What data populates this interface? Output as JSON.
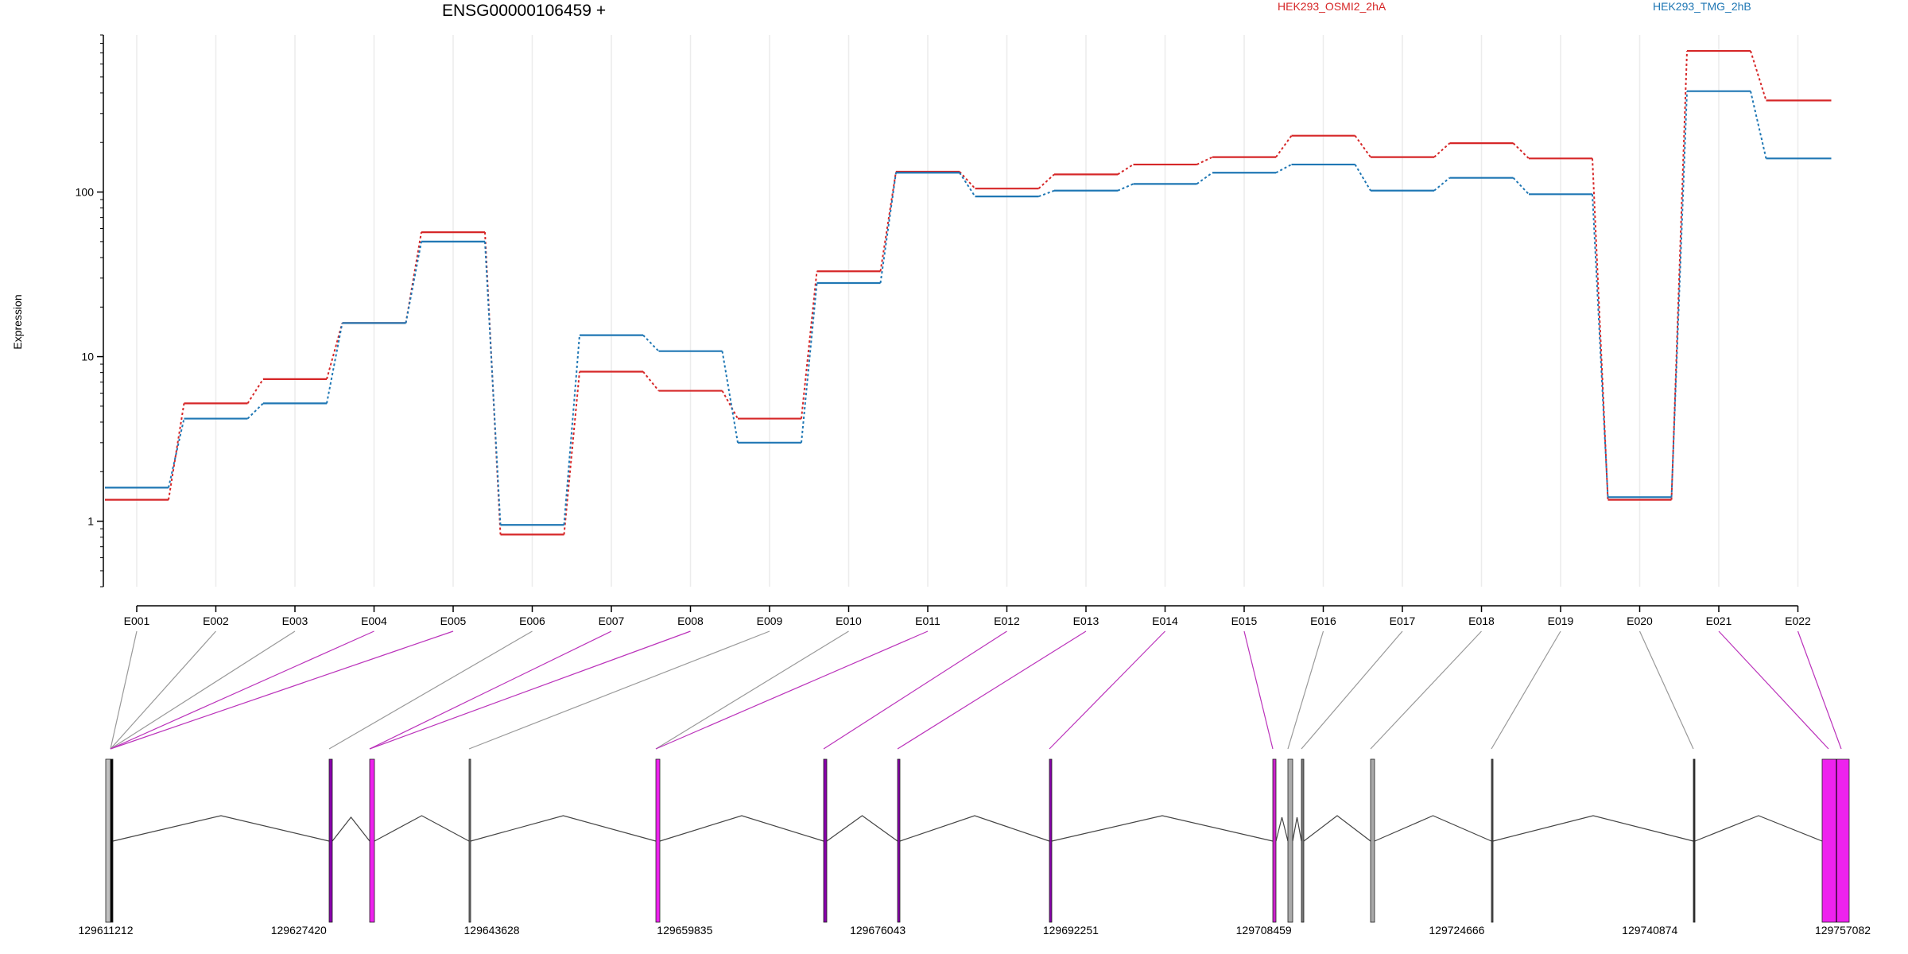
{
  "chart_data": {
    "type": "line",
    "title": "ENSG00000106459 +",
    "ylabel": "Expression",
    "yscale": "log",
    "ylim": [
      0.4,
      900
    ],
    "yticks": [
      1,
      10,
      100
    ],
    "ytick_labels": [
      "1",
      "10",
      "100"
    ],
    "grid": "vertical",
    "legend_position": "top",
    "categories": [
      "E001",
      "E002",
      "E003",
      "E004",
      "E005",
      "E006",
      "E007",
      "E008",
      "E009",
      "E010",
      "E011",
      "E012",
      "E013",
      "E014",
      "E015",
      "E016",
      "E017",
      "E018",
      "E019",
      "E020",
      "E021",
      "E022"
    ],
    "series": [
      {
        "name": "HEK293_OSMI2_2hA",
        "color": "#d62728",
        "values": [
          1.35,
          5.2,
          7.3,
          16,
          57,
          0.83,
          8.1,
          6.2,
          4.2,
          33,
          133,
          105,
          128,
          147,
          163,
          220,
          163,
          198,
          160,
          1.35,
          720,
          360
        ]
      },
      {
        "name": "HEK293_TMG_2hB",
        "color": "#1f77b4",
        "values": [
          1.6,
          4.2,
          5.2,
          16,
          50,
          0.95,
          13.5,
          10.8,
          3.0,
          28,
          131,
          94,
          102,
          112,
          131,
          147,
          102,
          122,
          97,
          1.4,
          410,
          160
        ]
      }
    ],
    "gene_model": {
      "coordinate_ticks": [
        "129611212",
        "129627420",
        "129643628",
        "129659835",
        "129676043",
        "129692251",
        "129708459",
        "129724666",
        "129740874",
        "129757082"
      ],
      "highlight_color": "#ee22ee",
      "exon_color": "#c0c0c0"
    }
  }
}
